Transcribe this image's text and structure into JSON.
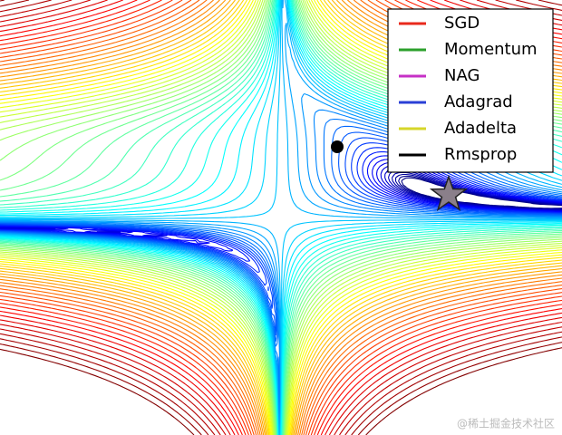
{
  "chart_data": {
    "type": "contour",
    "series": [
      {
        "name": "SGD",
        "color": "#e8291c"
      },
      {
        "name": "Momentum",
        "color": "#2ca02c"
      },
      {
        "name": "NAG",
        "color": "#c630c6"
      },
      {
        "name": "Adagrad",
        "color": "#2a3fd6"
      },
      {
        "name": "Adadelta",
        "color": "#d6d62a"
      },
      {
        "name": "Rmsprop",
        "color": "#000000"
      }
    ],
    "legend": "upper right",
    "watermark": "@稀土掘金技术社区"
  }
}
